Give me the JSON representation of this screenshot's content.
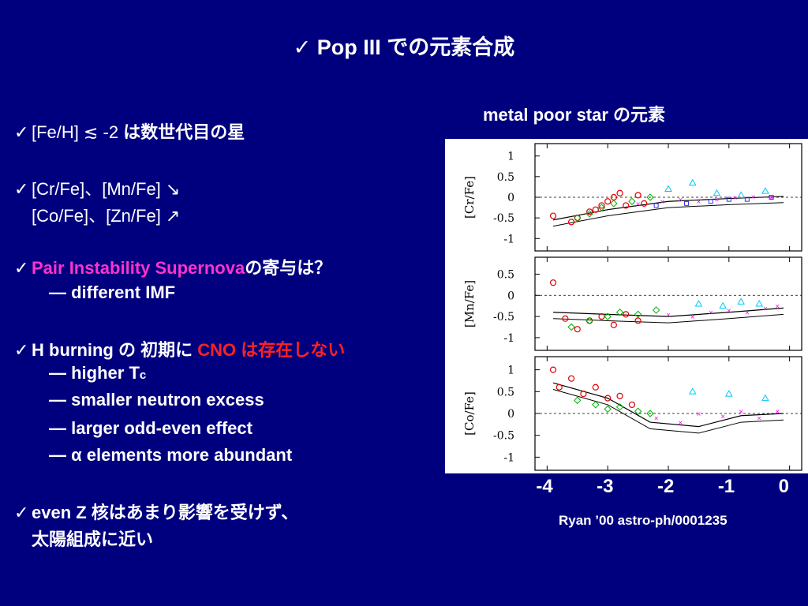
{
  "title": "✓ Pop III での元素合成",
  "bullets": {
    "b1": "[Fe/H] ≲ -2",
    "b1_jp": " は数世代目の星",
    "b2a": "[Cr/Fe]、[Mn/Fe] ↘",
    "b2b": "[Co/Fe]、[Zn/Fe] ↗",
    "b3": "Pair Instability Supernova",
    "b3_jp": "の寄与は？",
    "b3_sub": "— different IMF",
    "b4_pre": "H burning の 初期に ",
    "b4_red": "CNO は存在しない",
    "b4_s1": "— higher T",
    "b4_s1_sub": "c",
    "b4_s2": "— smaller neutron excess",
    "b4_s3": "— larger odd-even effect",
    "b4_s4": "— α elements more abundant",
    "b5a": "even Z 核はあまり影響を受けず、",
    "b5b": "太陽組成に近い"
  },
  "figure": {
    "label": "metal poor star の元素",
    "credit": "Ryan ’00 astro-ph/0001235"
  },
  "colors": {
    "background": "#00007f",
    "highlight_magenta": "#ff33cc",
    "highlight_red": "#ff2222"
  },
  "chart_data": [
    {
      "type": "scatter",
      "ylabel": "[Cr/Fe]",
      "ylim": [
        -1.3,
        1.3
      ],
      "yticks": [
        "1",
        "0.5",
        "0",
        "-0.5",
        "-1"
      ],
      "x_tick_labels": [
        "-4",
        "-3",
        "-2",
        "-1",
        "0"
      ],
      "xlim": [
        -4.2,
        0.2
      ],
      "series": [
        {
          "color": "#e00000",
          "x": [
            -3.9,
            -3.6,
            -3.5,
            -3.3,
            -3.2,
            -3.1,
            -3.0,
            -2.9,
            -2.8,
            -2.7,
            -2.5,
            -2.4
          ],
          "y": [
            -0.45,
            -0.6,
            -0.5,
            -0.35,
            -0.3,
            -0.2,
            -0.1,
            0.0,
            0.1,
            -0.2,
            0.05,
            -0.15
          ]
        },
        {
          "color": "#00b000",
          "x": [
            -3.5,
            -3.3,
            -3.1,
            -2.9,
            -2.6,
            -2.3
          ],
          "y": [
            -0.5,
            -0.4,
            -0.25,
            -0.15,
            -0.1,
            0.0
          ]
        },
        {
          "color": "#ff00ff",
          "x": [
            -2.5,
            -2.1,
            -1.8,
            -1.5,
            -1.2,
            -0.9,
            -0.6,
            -0.3
          ],
          "y": [
            -0.15,
            -0.1,
            -0.05,
            -0.1,
            -0.05,
            0.0,
            0.02,
            0.0
          ]
        },
        {
          "color": "#00c8ff",
          "x": [
            -2.0,
            -1.6,
            -1.2,
            -0.8,
            -0.4
          ],
          "y": [
            0.2,
            0.35,
            0.1,
            0.05,
            0.15
          ]
        },
        {
          "color": "#3030ff",
          "x": [
            -2.2,
            -1.7,
            -1.3,
            -1.0,
            -0.7,
            -0.3
          ],
          "y": [
            -0.2,
            -0.15,
            -0.1,
            -0.05,
            -0.05,
            0.0
          ]
        }
      ],
      "trend": [
        [
          -3.9,
          -0.55
        ],
        [
          -3.0,
          -0.3
        ],
        [
          -2.0,
          -0.1
        ],
        [
          -1.0,
          -0.03
        ],
        [
          -0.1,
          0.02
        ]
      ]
    },
    {
      "type": "scatter",
      "ylabel": "[Mn/Fe]",
      "ylim": [
        -1.3,
        0.9
      ],
      "yticks": [
        "0.5",
        "0",
        "-0.5",
        "-1"
      ],
      "x_tick_labels": [
        "-4",
        "-3",
        "-2",
        "-1",
        "0"
      ],
      "xlim": [
        -4.2,
        0.2
      ],
      "series": [
        {
          "color": "#e00000",
          "x": [
            -3.9,
            -3.7,
            -3.5,
            -3.3,
            -3.1,
            -2.9,
            -2.7,
            -2.5
          ],
          "y": [
            0.3,
            -0.55,
            -0.8,
            -0.6,
            -0.5,
            -0.7,
            -0.45,
            -0.6
          ]
        },
        {
          "color": "#00b000",
          "x": [
            -3.6,
            -3.3,
            -3.0,
            -2.8,
            -2.5,
            -2.2
          ],
          "y": [
            -0.75,
            -0.6,
            -0.5,
            -0.4,
            -0.45,
            -0.35
          ]
        },
        {
          "color": "#ff00ff",
          "x": [
            -2.0,
            -1.6,
            -1.3,
            -1.0,
            -0.7,
            -0.4,
            -0.2
          ],
          "y": [
            -0.45,
            -0.5,
            -0.4,
            -0.35,
            -0.4,
            -0.3,
            -0.25
          ]
        },
        {
          "color": "#00c8ff",
          "x": [
            -1.5,
            -1.1,
            -0.8,
            -0.5
          ],
          "y": [
            -0.2,
            -0.25,
            -0.15,
            -0.2
          ]
        }
      ],
      "trend": [
        [
          -3.9,
          -0.4
        ],
        [
          -3.0,
          -0.45
        ],
        [
          -2.0,
          -0.5
        ],
        [
          -1.0,
          -0.4
        ],
        [
          -0.1,
          -0.3
        ]
      ]
    },
    {
      "type": "scatter",
      "ylabel": "[Co/Fe]",
      "ylim": [
        -1.3,
        1.3
      ],
      "yticks": [
        "1",
        "0.5",
        "0",
        "-0.5",
        "-1"
      ],
      "x_tick_labels": [
        "-4",
        "-3",
        "-2",
        "-1",
        "0"
      ],
      "xlim": [
        -4.2,
        0.2
      ],
      "series": [
        {
          "color": "#e00000",
          "x": [
            -3.9,
            -3.8,
            -3.6,
            -3.4,
            -3.2,
            -3.0,
            -2.8,
            -2.6
          ],
          "y": [
            1.0,
            0.6,
            0.8,
            0.45,
            0.6,
            0.35,
            0.4,
            0.2
          ]
        },
        {
          "color": "#00b000",
          "x": [
            -3.5,
            -3.2,
            -3.0,
            -2.8,
            -2.5,
            -2.3
          ],
          "y": [
            0.3,
            0.2,
            0.1,
            0.15,
            0.05,
            0.0
          ]
        },
        {
          "color": "#ff00ff",
          "x": [
            -2.2,
            -1.8,
            -1.5,
            -1.1,
            -0.8,
            -0.5,
            -0.2
          ],
          "y": [
            -0.1,
            -0.2,
            0.0,
            -0.05,
            0.05,
            -0.1,
            0.05
          ]
        },
        {
          "color": "#00c8ff",
          "x": [
            -1.6,
            -1.0,
            -0.4
          ],
          "y": [
            0.5,
            0.45,
            0.35
          ]
        }
      ],
      "trend": [
        [
          -3.9,
          0.7
        ],
        [
          -3.0,
          0.35
        ],
        [
          -2.3,
          -0.2
        ],
        [
          -1.5,
          -0.3
        ],
        [
          -0.8,
          -0.05
        ],
        [
          -0.1,
          0.0
        ]
      ]
    }
  ]
}
